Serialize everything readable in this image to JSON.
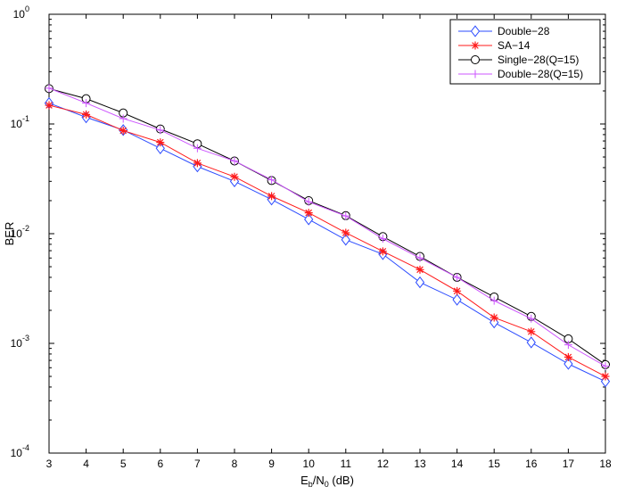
{
  "chart_data": {
    "type": "line",
    "xlabel": {
      "base": "E",
      "sub1": "b",
      "mid": "/N",
      "sub2": "0",
      "suffix": " (dB)"
    },
    "ylabel": "BER",
    "xlim": [
      3,
      18
    ],
    "ylim": [
      0.0001,
      1
    ],
    "yscale": "log",
    "grid": false,
    "legend_position": "top-right",
    "x": [
      3,
      4,
      5,
      6,
      7,
      8,
      9,
      10,
      11,
      12,
      13,
      14,
      15,
      16,
      17,
      18
    ],
    "x_ticks": [
      "3",
      "4",
      "5",
      "6",
      "7",
      "8",
      "9",
      "10",
      "11",
      "12",
      "13",
      "14",
      "15",
      "16",
      "17",
      "18"
    ],
    "y_ticks": [
      {
        "value": 1,
        "base": "10",
        "exp": "0"
      },
      {
        "value": 0.1,
        "base": "10",
        "exp": "-1"
      },
      {
        "value": 0.01,
        "base": "10",
        "exp": "-2"
      },
      {
        "value": 0.001,
        "base": "10",
        "exp": "-3"
      },
      {
        "value": 0.0001,
        "base": "10",
        "exp": "-4"
      }
    ],
    "series": [
      {
        "name": "Double−28",
        "color": "#2b4bff",
        "marker": "diamond",
        "values": [
          0.155,
          0.115,
          0.088,
          0.06,
          0.041,
          0.03,
          0.0205,
          0.0135,
          0.0088,
          0.0065,
          0.0036,
          0.0025,
          0.00155,
          0.00102,
          0.00065,
          0.00045
        ]
      },
      {
        "name": "SA−14",
        "color": "#ff1a1a",
        "marker": "star",
        "values": [
          0.148,
          0.122,
          0.087,
          0.068,
          0.044,
          0.033,
          0.022,
          0.0155,
          0.0102,
          0.0069,
          0.0047,
          0.003,
          0.00172,
          0.00128,
          0.00075,
          0.0005
        ]
      },
      {
        "name": "Single−28(Q=15)",
        "color": "#000000",
        "marker": "circle",
        "values": [
          0.21,
          0.17,
          0.126,
          0.09,
          0.066,
          0.046,
          0.0305,
          0.02,
          0.0146,
          0.0094,
          0.0062,
          0.004,
          0.00265,
          0.00176,
          0.0011,
          0.00064
        ]
      },
      {
        "name": "Double−28(Q=15)",
        "color": "#cc55ff",
        "marker": "plus",
        "values": [
          0.212,
          0.155,
          0.112,
          0.088,
          0.06,
          0.046,
          0.031,
          0.0195,
          0.0145,
          0.009,
          0.006,
          0.004,
          0.00245,
          0.00168,
          0.00097,
          0.00062
        ]
      }
    ]
  }
}
